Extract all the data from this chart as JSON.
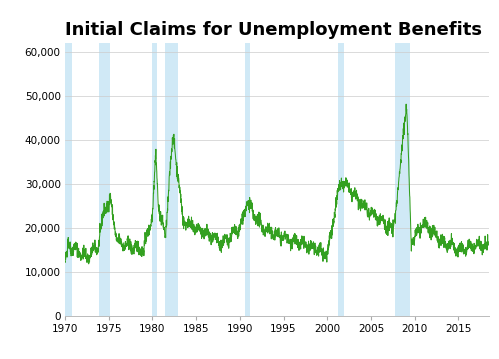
{
  "title": "Initial Claims for Unemployment Benefits",
  "title_fontsize": 13,
  "title_fontweight": "bold",
  "line_color": "#33a020",
  "line_width": 0.75,
  "recession_color": "#c8e6f5",
  "recession_alpha": 0.85,
  "background_color": "#ffffff",
  "grid_color": "#cccccc",
  "ylim": [
    0,
    62000
  ],
  "xlim_start": 1970.0,
  "xlim_end": 2018.5,
  "yticks": [
    0,
    10000,
    20000,
    30000,
    40000,
    50000,
    60000
  ],
  "ytick_labels": [
    "0",
    "10,000",
    "20,000",
    "30,000",
    "40,000",
    "50,000",
    "60,000"
  ],
  "xticks": [
    1970,
    1975,
    1980,
    1985,
    1990,
    1995,
    2000,
    2005,
    2010,
    2015
  ],
  "recession_bands": [
    [
      1969.9,
      1970.8
    ],
    [
      1973.9,
      1975.2
    ],
    [
      1980.0,
      1980.5
    ],
    [
      1981.5,
      1982.9
    ],
    [
      1990.6,
      1991.2
    ],
    [
      2001.2,
      2001.9
    ],
    [
      2007.8,
      2009.5
    ]
  ]
}
